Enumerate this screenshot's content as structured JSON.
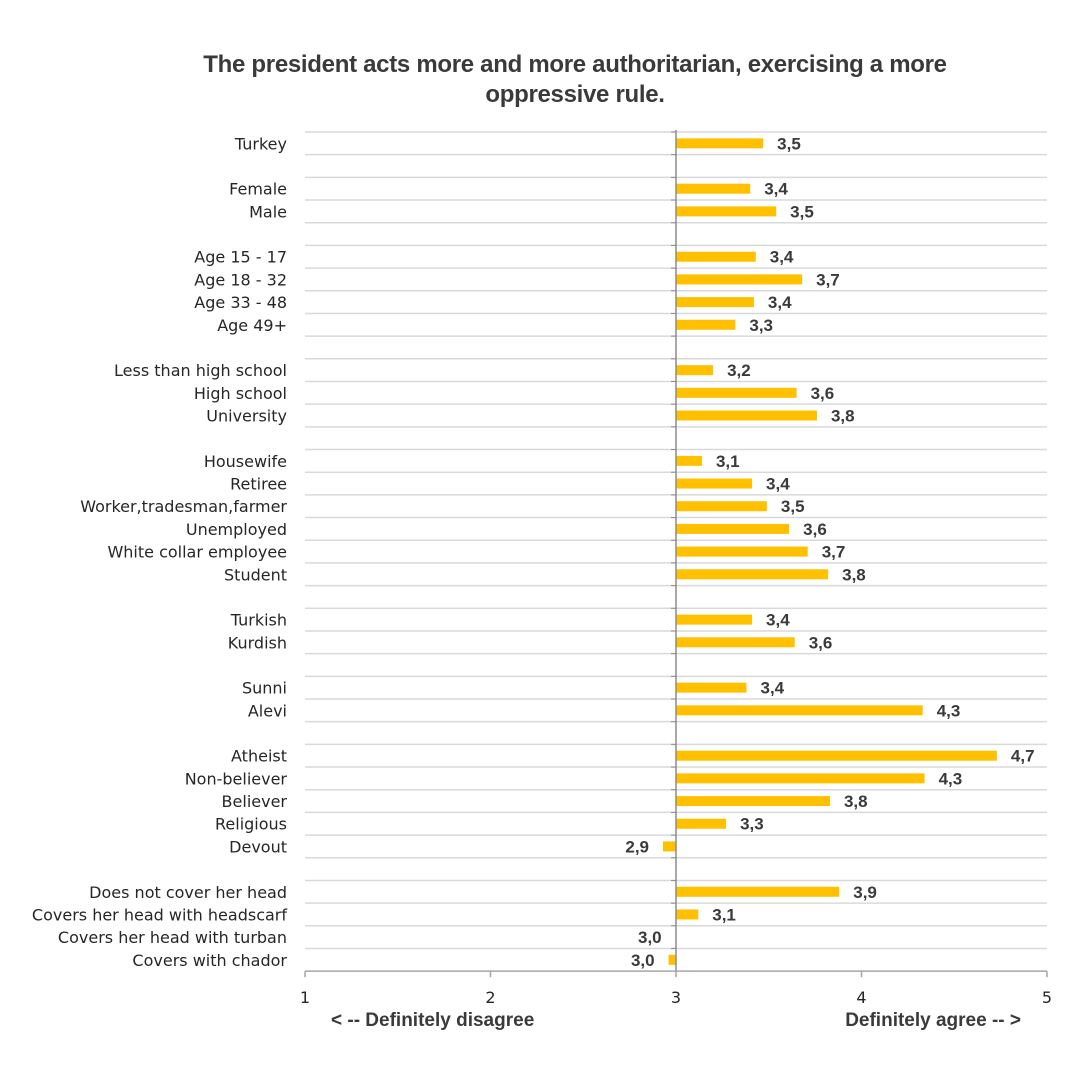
{
  "chart_data": {
    "type": "bar",
    "orientation": "horizontal",
    "title": "The president acts more and more authoritarian, exercising a more oppressive rule.",
    "xlabel_left": "< -- Definitely disagree",
    "xlabel_right": "Definitely agree -- >",
    "ylabel": "",
    "xlim": [
      1,
      5
    ],
    "baseline": 3,
    "xticks": [
      "1",
      "2",
      "3",
      "4",
      "5"
    ],
    "grid": true,
    "bar_color": "#FFC000",
    "groups": [
      {
        "rows": [
          {
            "label": "Turkey",
            "value": 3.47,
            "display": "3,5"
          }
        ]
      },
      {
        "rows": [
          {
            "label": "Female",
            "value": 3.4,
            "display": "3,4"
          },
          {
            "label": "Male",
            "value": 3.54,
            "display": "3,5"
          }
        ]
      },
      {
        "rows": [
          {
            "label": "Age 15 - 17 ",
            "value": 3.43,
            "display": "3,4"
          },
          {
            "label": "Age 18 - 32 ",
            "value": 3.68,
            "display": "3,7"
          },
          {
            "label": "Age 33 - 48",
            "value": 3.42,
            "display": "3,4"
          },
          {
            "label": "Age 49+ ",
            "value": 3.32,
            "display": "3,3"
          }
        ]
      },
      {
        "rows": [
          {
            "label": "Less than high school",
            "value": 3.2,
            "display": "3,2"
          },
          {
            "label": "High school",
            "value": 3.65,
            "display": "3,6"
          },
          {
            "label": "University",
            "value": 3.76,
            "display": "3,8"
          }
        ]
      },
      {
        "rows": [
          {
            "label": "Housewife",
            "value": 3.14,
            "display": "3,1"
          },
          {
            "label": "Retiree",
            "value": 3.41,
            "display": "3,4"
          },
          {
            "label": "Worker,tradesman,farmer",
            "value": 3.49,
            "display": "3,5"
          },
          {
            "label": "Unemployed",
            "value": 3.61,
            "display": "3,6"
          },
          {
            "label": "White collar employee",
            "value": 3.71,
            "display": "3,7"
          },
          {
            "label": "Student",
            "value": 3.82,
            "display": "3,8"
          }
        ]
      },
      {
        "rows": [
          {
            "label": "Turkish",
            "value": 3.41,
            "display": "3,4"
          },
          {
            "label": "Kurdish",
            "value": 3.64,
            "display": "3,6"
          }
        ]
      },
      {
        "rows": [
          {
            "label": "Sunni",
            "value": 3.38,
            "display": "3,4"
          },
          {
            "label": "Alevi",
            "value": 4.33,
            "display": "4,3"
          }
        ]
      },
      {
        "rows": [
          {
            "label": "Atheist",
            "value": 4.73,
            "display": "4,7"
          },
          {
            "label": "Non-believer",
            "value": 4.34,
            "display": "4,3"
          },
          {
            "label": "Believer",
            "value": 3.83,
            "display": "3,8"
          },
          {
            "label": "Religious",
            "value": 3.27,
            "display": "3,3"
          },
          {
            "label": "Devout",
            "value": 2.93,
            "display": "2,9"
          }
        ]
      },
      {
        "rows": [
          {
            "label": "Does not cover her head",
            "value": 3.88,
            "display": "3,9"
          },
          {
            "label": "Covers her head with headscarf",
            "value": 3.12,
            "display": "3,1"
          },
          {
            "label": "Covers her head with turban",
            "value": 2.998,
            "display": "3,0"
          },
          {
            "label": "Covers with chador",
            "value": 2.96,
            "display": "3,0"
          }
        ]
      }
    ]
  }
}
